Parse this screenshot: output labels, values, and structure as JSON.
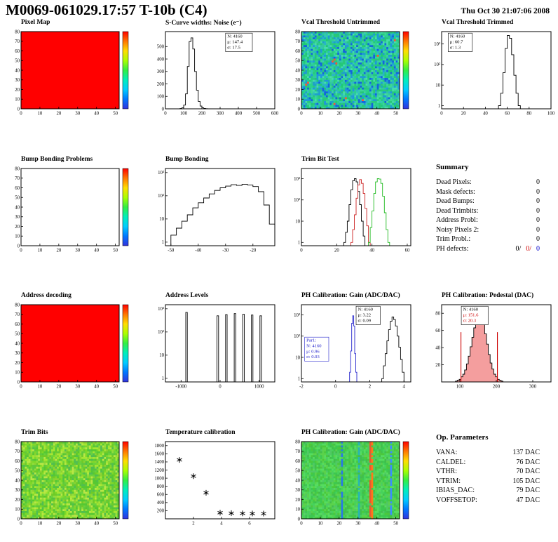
{
  "header": {
    "title": "M0069-061029.17:57 T-10b (C4)",
    "date": "Thu Oct 30 21:07:06 2008"
  },
  "colorbar_colors": [
    "#ff0000",
    "#ff7700",
    "#ffdd00",
    "#aaff00",
    "#33ee44",
    "#00eebb",
    "#00ccff",
    "#0077ff",
    "#3333dd"
  ],
  "summary": {
    "heading": "Summary",
    "rows": [
      [
        "Dead Pixels:",
        "0"
      ],
      [
        "Mask defects:",
        "0"
      ],
      [
        "Dead Bumps:",
        "0"
      ],
      [
        "Dead Trimbits:",
        "0"
      ],
      [
        "Address Probl:",
        "0"
      ],
      [
        "Noisy Pixels 2:",
        "0"
      ],
      [
        "Trim Probl.:",
        "0"
      ]
    ],
    "ph_defects": {
      "label": "PH defects:",
      "parts": [
        {
          "t": "0/",
          "c": "#000000"
        },
        {
          "t": "0/",
          "c": "#cc0000"
        },
        {
          "t": "0",
          "c": "#0000cc"
        }
      ]
    }
  },
  "op_parameters": {
    "heading": "Op. Parameters",
    "rows": [
      [
        "VANA:",
        "137 DAC"
      ],
      [
        "CALDEL:",
        "76 DAC"
      ],
      [
        "VTHR:",
        "70 DAC"
      ],
      [
        "VTRIM:",
        "105 DAC"
      ],
      [
        "IBIAS_DAC:",
        "79 DAC"
      ],
      [
        "VOFFSETOP:",
        "47 DAC"
      ]
    ]
  },
  "chart_data": [
    {
      "title": "Pixel Map",
      "type": "heatmap",
      "fill": "#ff0000",
      "colorbar": true,
      "xlim": [
        0,
        52
      ],
      "ylim": [
        0,
        80
      ],
      "x_ticks": [
        0,
        10,
        20,
        30,
        40,
        50
      ],
      "y_ticks": [
        0,
        10,
        20,
        30,
        40,
        50,
        60,
        70,
        80
      ]
    },
    {
      "title": "S-Curve widths: Noise (e⁻)",
      "type": "bar",
      "xlim": [
        0,
        600
      ],
      "ylim": [
        0,
        620
      ],
      "x_ticks": [
        0,
        100,
        200,
        300,
        400,
        500,
        600
      ],
      "y_ticks": [
        0,
        100,
        200,
        300,
        400,
        500
      ],
      "series": [
        {
          "x0": 80,
          "dx": 10,
          "stroke": "#000000",
          "values": [
            2,
            8,
            30,
            120,
            340,
            540,
            570,
            480,
            300,
            150,
            60,
            22,
            8,
            3,
            1
          ]
        }
      ],
      "stats": {
        "pos": [
          0.55,
          0.02
        ],
        "lines": [
          {
            "t": "N: 4160",
            "c": "#000000"
          },
          {
            "t": "μ: 147.4",
            "c": "#000000"
          },
          {
            "t": "σ: 17.5",
            "c": "#000000"
          }
        ]
      }
    },
    {
      "title": "Vcal Threshold Untrimmed",
      "type": "heatmap",
      "colorbar": true,
      "seed": 11,
      "cols": 52,
      "rows": 40,
      "hot": "#ff5032",
      "palette": [
        "#1ec878",
        "#28d28c",
        "#32c8a0",
        "#28b4c8",
        "#1e96dc",
        "#28c882",
        "#3cd796",
        "#1ea0c8",
        "#28c878",
        "#46dcaa",
        "#1464dc",
        "#32c8b4"
      ],
      "xlim": [
        0,
        52
      ],
      "ylim": [
        0,
        80
      ],
      "x_ticks": [
        0,
        10,
        20,
        30,
        40,
        50
      ],
      "y_ticks": [
        0,
        10,
        20,
        30,
        40,
        50,
        60,
        70,
        80
      ]
    },
    {
      "title": "Vcal Threshold Trimmed",
      "type": "bar",
      "logy": true,
      "xlim": [
        0,
        100
      ],
      "ylim": [
        0.7,
        4000
      ],
      "x_ticks": [
        0,
        20,
        40,
        60,
        80,
        100
      ],
      "y_ticks": [
        {
          "v": 1,
          "l": "1"
        },
        {
          "v": 10,
          "l": "10"
        },
        {
          "v": 100,
          "l": "10²"
        },
        {
          "v": 1000,
          "l": "10³"
        }
      ],
      "series": [
        {
          "x0": 52,
          "dx": 2,
          "stroke": "#000000",
          "values": [
            1,
            4,
            40,
            600,
            2600,
            1900,
            300,
            30,
            4,
            1
          ]
        }
      ],
      "stats": {
        "pos": [
          0.06,
          0.02
        ],
        "lines": [
          {
            "t": "N: 4160",
            "c": "#000000"
          },
          {
            "t": "μ: 60.7",
            "c": "#000000"
          },
          {
            "t": "σ: 1.3",
            "c": "#000000"
          }
        ]
      }
    },
    {
      "title": "Bump Bonding Problems",
      "type": "empty",
      "colorbar": true,
      "xlim": [
        0,
        52
      ],
      "ylim": [
        0,
        80
      ],
      "x_ticks": [
        0,
        10,
        20,
        30,
        40,
        50
      ],
      "y_ticks": [
        0,
        10,
        20,
        30,
        40,
        50,
        60,
        70,
        80
      ]
    },
    {
      "title": "Bump Bonding",
      "type": "bar",
      "logy": true,
      "xlim": [
        -52,
        -12
      ],
      "ylim": [
        0.7,
        1500
      ],
      "x_ticks": [
        -50,
        -40,
        -30,
        -20
      ],
      "y_ticks": [
        {
          "v": 1,
          "l": "1"
        },
        {
          "v": 10,
          "l": "10"
        },
        {
          "v": 100,
          "l": "10²"
        },
        {
          "v": 1000,
          "l": "10³"
        }
      ],
      "series": [
        {
          "x0": -50,
          "dx": 2,
          "stroke": "#000000",
          "values": [
            2,
            4,
            8,
            15,
            30,
            50,
            80,
            120,
            170,
            220,
            260,
            300,
            280,
            310,
            290,
            250,
            150,
            40,
            6
          ]
        }
      ]
    },
    {
      "title": "Trim Bit Test",
      "type": "bar",
      "logy": true,
      "xlim": [
        0,
        62
      ],
      "ylim": [
        0.7,
        3000
      ],
      "x_ticks": [
        0,
        20,
        40,
        60
      ],
      "y_ticks": [
        {
          "v": 1,
          "l": "1"
        },
        {
          "v": 10,
          "l": "10"
        },
        {
          "v": 100,
          "l": "10²"
        },
        {
          "v": 1000,
          "l": "10³"
        }
      ],
      "series": [
        {
          "x0": 24,
          "dx": 1,
          "stroke": "#000000",
          "values": [
            1,
            3,
            10,
            60,
            300,
            800,
            1000,
            700,
            250,
            60,
            10,
            2
          ]
        },
        {
          "x0": 28,
          "dx": 1,
          "stroke": "#cc2222",
          "values": [
            1,
            4,
            20,
            120,
            500,
            900,
            600,
            200,
            40,
            6,
            1
          ]
        },
        {
          "x0": 38,
          "dx": 1,
          "stroke": "#22bb22",
          "values": [
            1,
            5,
            30,
            200,
            700,
            1000,
            950,
            600,
            150,
            25,
            4,
            1
          ]
        }
      ]
    },
    {
      "title": "Address decoding",
      "type": "heatmap",
      "fill": "#ff0000",
      "colorbar": true,
      "xlim": [
        0,
        52
      ],
      "ylim": [
        0,
        80
      ],
      "x_ticks": [
        0,
        10,
        20,
        30,
        40,
        50
      ],
      "y_ticks": [
        0,
        10,
        20,
        30,
        40,
        50,
        60,
        70,
        80
      ]
    },
    {
      "title": "Address Levels",
      "type": "bar",
      "logy": true,
      "xlim": [
        -1400,
        1400
      ],
      "ylim": [
        0.7,
        1500
      ],
      "x_ticks": [
        -1000,
        0,
        1000
      ],
      "y_ticks": [
        {
          "v": 1,
          "l": "1"
        },
        {
          "v": 10,
          "l": "10"
        },
        {
          "v": 100,
          "l": "10²"
        },
        {
          "v": 1000,
          "l": "10³"
        }
      ],
      "series": [
        {
          "x0": -880,
          "dx": 40,
          "stroke": "#000000",
          "values": [
            700
          ]
        },
        {
          "x0": -80,
          "dx": 40,
          "stroke": "#000000",
          "values": [
            500
          ]
        },
        {
          "x0": 140,
          "dx": 40,
          "stroke": "#000000",
          "values": [
            560
          ]
        },
        {
          "x0": 360,
          "dx": 40,
          "stroke": "#000000",
          "values": [
            620
          ]
        },
        {
          "x0": 580,
          "dx": 40,
          "stroke": "#000000",
          "values": [
            580
          ]
        },
        {
          "x0": 800,
          "dx": 40,
          "stroke": "#000000",
          "values": [
            540
          ]
        },
        {
          "x0": 1020,
          "dx": 40,
          "stroke": "#000000",
          "values": [
            500
          ]
        }
      ]
    },
    {
      "title": "PH Calibration: Gain (ADC/DAC)",
      "type": "bar",
      "logy": true,
      "xlim": [
        -2,
        4.4
      ],
      "ylim": [
        0.7,
        3000
      ],
      "x_ticks": [
        -2,
        0,
        2,
        4
      ],
      "y_ticks": [
        {
          "v": 1,
          "l": "1"
        },
        {
          "v": 10,
          "l": "10"
        },
        {
          "v": 100,
          "l": "10²"
        },
        {
          "v": 1000,
          "l": "10³"
        }
      ],
      "series": [
        {
          "x0": 2.7,
          "dx": 0.1,
          "stroke": "#000000",
          "values": [
            1,
            4,
            15,
            60,
            200,
            500,
            800,
            600,
            300,
            100,
            30,
            8,
            2
          ]
        },
        {
          "x0": 0.82,
          "dx": 0.06,
          "stroke": "#2222cc",
          "values": [
            2,
            20,
            400,
            900,
            300,
            15,
            2
          ]
        }
      ],
      "stats": {
        "pos": [
          0.5,
          0.02
        ],
        "lines": [
          {
            "t": "N: 4160",
            "c": "#000000"
          },
          {
            "t": "μ: 3.22",
            "c": "#000000"
          },
          {
            "t": "σ: 0.09",
            "c": "#000000"
          }
        ]
      },
      "stats2": {
        "pos": [
          0.03,
          0.42
        ],
        "border": "#2222cc",
        "lines": [
          {
            "t": "Par1:",
            "c": "#2222cc"
          },
          {
            "t": "N: 4160",
            "c": "#2222cc"
          },
          {
            "t": "μ: 0.96",
            "c": "#2222cc"
          },
          {
            "t": "σ: 0.03",
            "c": "#2222cc"
          }
        ]
      }
    },
    {
      "title": "PH Calibration: Pedestal (DAC)",
      "type": "bar",
      "xlim": [
        50,
        350
      ],
      "ylim": [
        0,
        90
      ],
      "x_ticks": [
        100,
        200,
        300
      ],
      "y_ticks": [
        20,
        40,
        60,
        80
      ],
      "series": [
        {
          "x0": 88,
          "dx": 5,
          "stroke": "#000000",
          "fill": "rgba(230,40,40,0.45)",
          "values": [
            1,
            2,
            3,
            6,
            9,
            14,
            21,
            30,
            41,
            52,
            63,
            72,
            79,
            80,
            76,
            67,
            56,
            44,
            32,
            22,
            15,
            9,
            6,
            3,
            2,
            1
          ]
        }
      ],
      "marks": {
        "color": "#cc0000",
        "lines": [
          {
            "x": 103,
            "y": 58
          },
          {
            "x": 203,
            "y": 58
          }
        ]
      },
      "stats": {
        "pos": [
          0.18,
          0.02
        ],
        "lines": [
          {
            "t": "N: 4160",
            "c": "#000000"
          },
          {
            "t": "μ: 151.6",
            "c": "#cc0000"
          },
          {
            "t": "σ: 20.3",
            "c": "#cc0000"
          }
        ]
      }
    },
    {
      "title": "Trim Bits",
      "type": "heatmap",
      "colorbar": true,
      "seed": 23,
      "cols": 52,
      "rows": 40,
      "palette": [
        "#55c832",
        "#69d23c",
        "#7dd928",
        "#91dc3c",
        "#a5e632",
        "#5fc83c",
        "#b9e646",
        "#50be50",
        "#8cd232",
        "#6ecb28"
      ],
      "xlim": [
        0,
        52
      ],
      "ylim": [
        0,
        80
      ],
      "x_ticks": [
        0,
        10,
        20,
        30,
        40,
        50
      ],
      "y_ticks": [
        0,
        10,
        20,
        30,
        40,
        50,
        60,
        70,
        80
      ]
    },
    {
      "title": "Temperature calibration",
      "type": "scatter",
      "xlim": [
        0,
        7.8
      ],
      "ylim": [
        0,
        1900
      ],
      "x_ticks": [
        2,
        4,
        6
      ],
      "y_ticks": [
        200,
        400,
        600,
        800,
        1000,
        1200,
        1400,
        1600,
        1800
      ],
      "points": [
        [
          1.0,
          1450
        ],
        [
          2.0,
          1050
        ],
        [
          2.9,
          640
        ],
        [
          3.9,
          150
        ],
        [
          4.7,
          140
        ],
        [
          5.5,
          135
        ],
        [
          6.2,
          132
        ],
        [
          7.0,
          130
        ]
      ]
    },
    {
      "title": "PH Calibration: Gain (ADC/DAC)",
      "type": "heatmap",
      "colorbar": true,
      "seed": 37,
      "cols": 52,
      "rows": 40,
      "palette": [
        "#3cc850",
        "#46d25a",
        "#50c864",
        "#5ad24b",
        "#41be4b",
        "#55dc5f",
        "#4bc83c"
      ],
      "col_overrides": {
        "21": "#2878e6",
        "30": "#28b4b4",
        "36": "#e65a32",
        "37": "#ff7818",
        "47": "#3c8cff"
      },
      "xlim": [
        0,
        52
      ],
      "ylim": [
        0,
        80
      ],
      "x_ticks": [
        0,
        10,
        20,
        30,
        40,
        50
      ],
      "y_ticks": [
        0,
        10,
        20,
        30,
        40,
        50,
        60,
        70,
        80
      ]
    }
  ]
}
